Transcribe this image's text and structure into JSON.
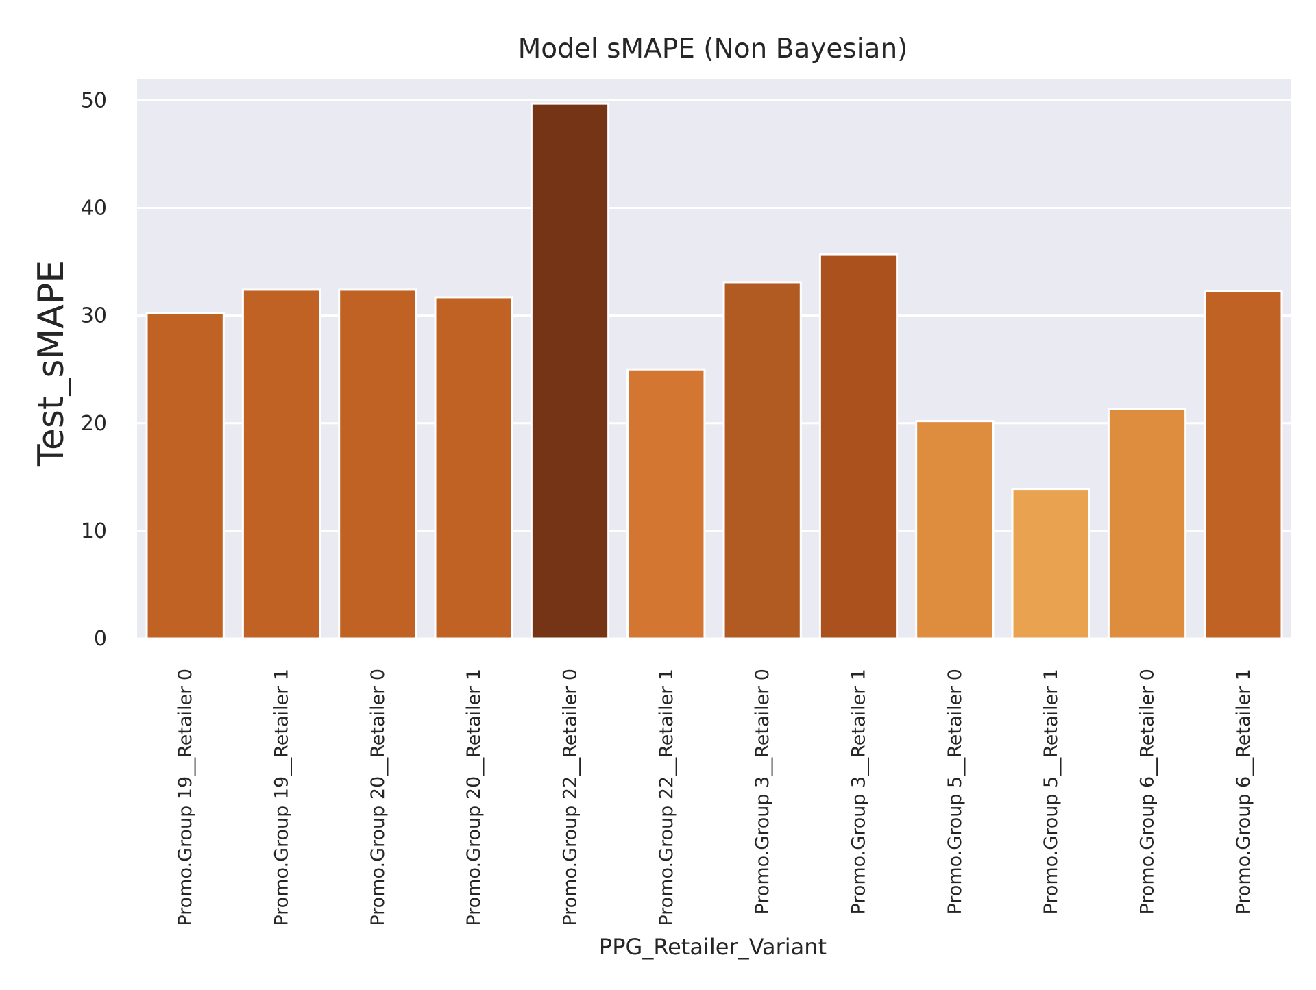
{
  "chart_data": {
    "type": "bar",
    "title": "Model sMAPE (Non Bayesian)",
    "xlabel": "PPG_Retailer_Variant",
    "ylabel": "Test_sMAPE",
    "ylim": [
      0,
      52
    ],
    "yticks": [
      0,
      10,
      20,
      30,
      40,
      50
    ],
    "grid": true,
    "legend": "none",
    "background": "#eaeaf2",
    "categories": [
      "Promo.Group 19__Retailer 0",
      "Promo.Group 19__Retailer 1",
      "Promo.Group 20__Retailer 0",
      "Promo.Group 20__Retailer 1",
      "Promo.Group 22__Retailer 0",
      "Promo.Group 22__Retailer 1",
      "Promo.Group 3__Retailer 0",
      "Promo.Group 3__Retailer 1",
      "Promo.Group 5__Retailer 0",
      "Promo.Group 5__Retailer 1",
      "Promo.Group 6__Retailer 0",
      "Promo.Group 6__Retailer 1"
    ],
    "values": [
      30.2,
      32.4,
      32.4,
      31.7,
      49.7,
      25.0,
      33.1,
      35.7,
      20.2,
      13.9,
      21.3,
      32.3
    ],
    "colors": [
      "#bf6223",
      "#bf6223",
      "#bf6223",
      "#bf6223",
      "#763417",
      "#d27631",
      "#b15a22",
      "#ab511d",
      "#de8c3d",
      "#e8a250",
      "#de8c3d",
      "#bf6223"
    ]
  }
}
